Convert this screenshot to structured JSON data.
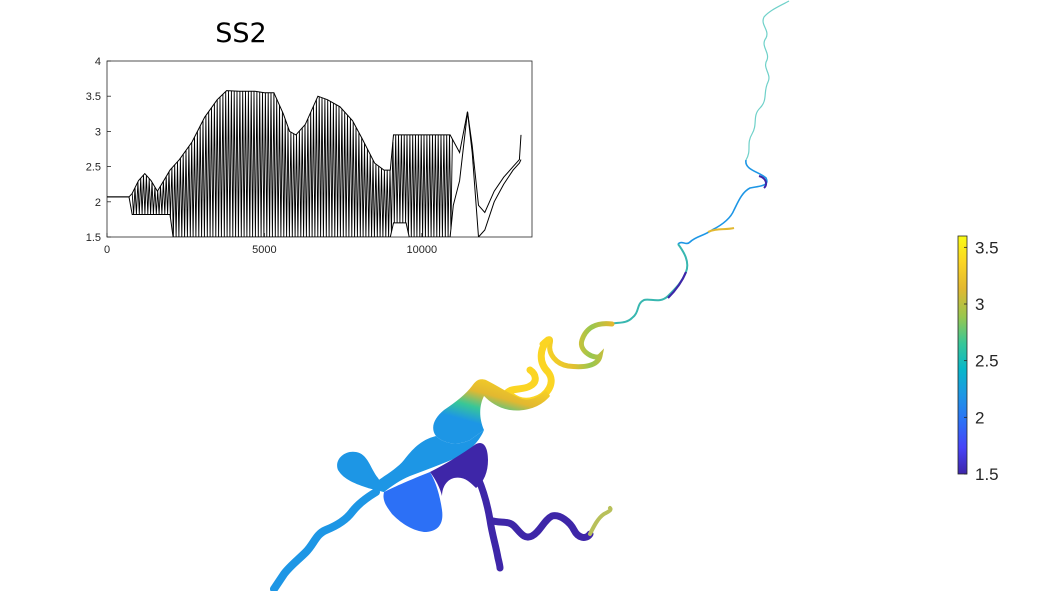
{
  "chart_data": [
    {
      "type": "line",
      "title": "SS2",
      "xlim": [
        0,
        13500
      ],
      "ylim": [
        1.5,
        4
      ],
      "x_ticks": [
        "0",
        "5000",
        "10000"
      ],
      "x_tick_values": [
        0,
        5000,
        10000
      ],
      "y_ticks": [
        "1.5",
        "2",
        "2.5",
        "3",
        "3.5",
        "4"
      ],
      "y_tick_values": [
        1.5,
        2,
        2.5,
        3,
        3.5,
        4
      ],
      "series": [
        {
          "color": "#000000",
          "envelope_high": [
            [
              0,
              2.07
            ],
            [
              700,
              2.07
            ],
            [
              800,
              2.12
            ],
            [
              1000,
              2.3
            ],
            [
              1200,
              2.4
            ],
            [
              1400,
              2.3
            ],
            [
              1600,
              2.15
            ],
            [
              1800,
              2.3
            ],
            [
              2000,
              2.45
            ],
            [
              2300,
              2.6
            ],
            [
              2700,
              2.85
            ],
            [
              3100,
              3.2
            ],
            [
              3500,
              3.45
            ],
            [
              3800,
              3.58
            ],
            [
              4200,
              3.57
            ],
            [
              4700,
              3.57
            ],
            [
              5000,
              3.55
            ],
            [
              5300,
              3.55
            ],
            [
              5600,
              3.25
            ],
            [
              5800,
              3.0
            ],
            [
              6000,
              2.95
            ],
            [
              6300,
              3.1
            ],
            [
              6700,
              3.5
            ],
            [
              7000,
              3.45
            ],
            [
              7400,
              3.35
            ],
            [
              7800,
              3.15
            ],
            [
              8100,
              2.9
            ],
            [
              8500,
              2.55
            ],
            [
              8800,
              2.45
            ],
            [
              9000,
              2.45
            ],
            [
              9100,
              2.95
            ],
            [
              10900,
              2.95
            ],
            [
              11200,
              2.7
            ],
            [
              11450,
              3.28
            ],
            [
              11600,
              2.8
            ],
            [
              11800,
              1.95
            ],
            [
              12000,
              1.85
            ],
            [
              12300,
              2.15
            ],
            [
              12600,
              2.35
            ],
            [
              12900,
              2.5
            ],
            [
              13100,
              2.6
            ],
            [
              13150,
              2.95
            ]
          ],
          "envelope_low": [
            [
              0,
              2.07
            ],
            [
              700,
              2.07
            ],
            [
              800,
              1.82
            ],
            [
              1000,
              1.82
            ],
            [
              1600,
              1.82
            ],
            [
              2000,
              1.82
            ],
            [
              2100,
              1.5
            ],
            [
              9000,
              1.5
            ],
            [
              9100,
              1.7
            ],
            [
              9500,
              1.7
            ],
            [
              9600,
              1.5
            ],
            [
              10900,
              1.5
            ],
            [
              11000,
              1.95
            ],
            [
              11200,
              2.3
            ],
            [
              11450,
              3.28
            ],
            [
              11600,
              2.7
            ],
            [
              11800,
              1.5
            ],
            [
              12000,
              1.6
            ],
            [
              12300,
              2.0
            ],
            [
              12600,
              2.25
            ],
            [
              12900,
              2.45
            ],
            [
              13100,
              2.55
            ],
            [
              13150,
              2.6
            ]
          ],
          "oscillation_range": [
            800,
            11000
          ]
        }
      ]
    },
    {
      "type": "heatmap",
      "colorbar": {
        "range": [
          1.5,
          3.6
        ],
        "ticks": [
          "1.5",
          "2",
          "2.5",
          "3",
          "3.5"
        ],
        "tick_values": [
          1.5,
          2,
          2.5,
          3,
          3.5
        ]
      },
      "colormap": [
        "#3e26a8",
        "#4743f8",
        "#2c70f6",
        "#1d96e5",
        "#07b7c9",
        "#38c797",
        "#98c74f",
        "#e2b830",
        "#fbd523",
        "#f9fb15"
      ],
      "network_values": [
        {
          "segment": "upstream-river-top",
          "value": 2.6
        },
        {
          "segment": "upstream-river-mid",
          "value": 2.2
        },
        {
          "segment": "upstream-bend-dark",
          "value": 1.6
        },
        {
          "segment": "upstream-bend-yellow",
          "value": 3.2
        },
        {
          "segment": "meander-yellow",
          "value": 3.5
        },
        {
          "segment": "meander-green",
          "value": 2.9
        },
        {
          "segment": "estuary-north",
          "value": 3.3
        },
        {
          "segment": "estuary-center",
          "value": 2.4
        },
        {
          "segment": "estuary-blue",
          "value": 1.9
        },
        {
          "segment": "estuary-dark",
          "value": 1.5
        },
        {
          "segment": "west-channel",
          "value": 2.2
        },
        {
          "segment": "east-branch",
          "value": 1.5
        },
        {
          "segment": "east-branch-tip",
          "value": 2.9
        }
      ]
    }
  ]
}
